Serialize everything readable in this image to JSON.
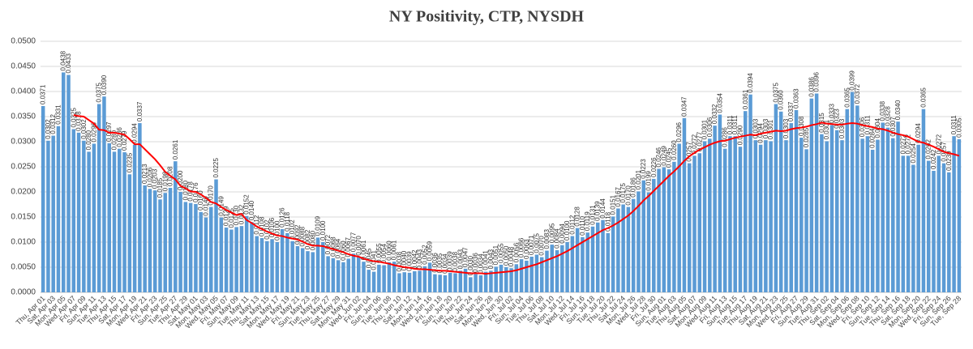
{
  "chart_data": {
    "type": "bar",
    "title": "NY Positivity, CTP, NYSDH",
    "categories": [
      "Thu, Apr 01",
      null,
      "Sat, Apr 03",
      null,
      "Mon, Apr 05",
      null,
      "Wed, Apr 07",
      null,
      "Fri, Apr 09",
      null,
      "Sun, Apr 11",
      null,
      "Tue, Apr 13",
      null,
      "Thu, Apr 15",
      null,
      "Sat, Apr 17",
      null,
      "Mon, Apr 19",
      null,
      "Wed, Apr 21",
      null,
      "Fri, Apr 23",
      null,
      "Sun, Apr 25",
      null,
      "Tue, Apr 27",
      null,
      "Thu, Apr 29",
      null,
      "Sat, May 01",
      null,
      "Mon, May 03",
      null,
      "Wed, May 05",
      null,
      "Fri, May 07",
      null,
      "Sun, May 09",
      null,
      "Tue, May 11",
      null,
      "Thu, May 13",
      null,
      "Sat, May 15",
      null,
      "Mon, May 17",
      null,
      "Wed, May 19",
      null,
      "Fri, May 21",
      null,
      "Sun, May 23",
      null,
      "Tue, May 25",
      null,
      "Thu, May 27",
      null,
      "Sat, May 29",
      null,
      "Mon, May 31",
      null,
      "Wed, Jun 02",
      null,
      "Fri, Jun 04",
      null,
      "Sun, Jun 06",
      null,
      "Tue, Jun 08",
      null,
      "Thu, Jun 10",
      null,
      "Sat, Jun 12",
      null,
      "Mon, Jun 14",
      null,
      "Wed, Jun 16",
      null,
      "Fri, Jun 18",
      null,
      "Sun, Jun 20",
      null,
      "Tue, Jun 22",
      null,
      "Thu, Jun 24",
      null,
      "Sat, Jun 26",
      null,
      "Mon, Jun 28",
      null,
      "Wed, Jun 30",
      null,
      "Fri, Jul 02",
      null,
      "Sun, Jul 04",
      null,
      "Tue, Jul 06",
      null,
      "Thu, Jul 08",
      null,
      "Sat, Jul 10",
      null,
      "Mon, Jul 12",
      null,
      "Wed, Jul 14",
      null,
      "Fri, Jul 16",
      null,
      "Sun, Jul 18",
      null,
      "Tue, Jul 20",
      null,
      "Thu, Jul 22",
      null,
      "Sat, Jul 24",
      null,
      "Mon, Jul 26",
      null,
      "Wed, Jul 28",
      null,
      "Fri, Jul 30",
      null,
      "Sun, Aug 01",
      null,
      "Tue, Aug 03",
      null,
      "Thu, Aug 05",
      null,
      "Sat, Aug 07",
      null,
      "Mon, Aug 09",
      null,
      "Wed, Aug 11",
      null,
      "Fri, Aug 13",
      null,
      "Sun, Aug 15",
      null,
      "Tue, Aug 17",
      null,
      "Thu, Aug 19",
      null,
      "Sat, Aug 21",
      null,
      "Mon, Aug 23",
      null,
      "Wed, Aug 25",
      null,
      "Fri, Aug 27",
      null,
      "Sun, Aug 29",
      null,
      "Tue, Aug 31",
      null,
      "Thu, Sep 02",
      null,
      "Sat, Sep 04",
      null,
      "Mon, Sep 06",
      null,
      "Wed, Sep 08",
      null,
      "Fri, Sep 10",
      null,
      "Sun, Sep 12",
      null,
      "Tue, Sep 14",
      null,
      "Thu, Sep 16",
      null,
      "Sat, Sep 18",
      null,
      "Mon, Sep 20",
      null,
      "Wed, Sep 22",
      null,
      "Fri, Sep 24",
      null,
      "Sun, Sep 26",
      null,
      "Tue, Sep 28"
    ],
    "series": [
      {
        "type": "bar",
        "color": "#5b9bd5",
        "values": [
          0.0371,
          0.0302,
          0.0312,
          0.0331,
          0.0438,
          0.0433,
          0.0325,
          0.0318,
          0.0302,
          0.028,
          0.0296,
          0.0375,
          0.039,
          0.0297,
          0.028,
          0.0286,
          0.0279,
          0.0235,
          0.0294,
          0.0337,
          0.0213,
          0.0206,
          0.0203,
          0.0185,
          0.0198,
          0.0208,
          0.0261,
          0.02,
          0.018,
          0.0178,
          0.0176,
          0.016,
          0.0149,
          0.017,
          0.0225,
          0.0149,
          0.0129,
          0.0125,
          0.013,
          0.0132,
          0.0152,
          0.014,
          0.0112,
          0.0108,
          0.0102,
          0.0106,
          0.01,
          0.0126,
          0.0118,
          0.0102,
          0.0092,
          0.0088,
          0.0082,
          0.008,
          0.0109,
          0.01,
          0.0072,
          0.0068,
          0.0064,
          0.006,
          0.0067,
          0.0077,
          0.007,
          0.0061,
          0.0045,
          0.0041,
          0.0055,
          0.0054,
          0.006,
          0.0061,
          0.0038,
          0.004,
          0.0039,
          0.0042,
          0.0043,
          0.0052,
          0.0059,
          0.0036,
          0.0035,
          0.0034,
          0.0039,
          0.0038,
          0.0043,
          0.0047,
          0.003,
          0.0036,
          0.0034,
          0.0041,
          0.0043,
          0.0051,
          0.0055,
          0.005,
          0.0048,
          0.0056,
          0.0066,
          0.0063,
          0.0071,
          0.0075,
          0.007,
          0.0083,
          0.0095,
          0.0084,
          0.0094,
          0.01,
          0.0112,
          0.0128,
          0.011,
          0.0119,
          0.0131,
          0.0139,
          0.0144,
          0.0118,
          0.0151,
          0.0167,
          0.0175,
          0.017,
          0.0186,
          0.0201,
          0.0223,
          0.0199,
          0.0226,
          0.0246,
          0.0249,
          0.0245,
          0.026,
          0.0296,
          0.0347,
          0.0257,
          0.0272,
          0.0277,
          0.0301,
          0.0306,
          0.0332,
          0.0354,
          0.0286,
          0.0311,
          0.0311,
          0.029,
          0.0361,
          0.0394,
          0.0303,
          0.0294,
          0.0303,
          0.0301,
          0.0375,
          0.036,
          0.0303,
          0.0337,
          0.0363,
          0.0308,
          0.0285,
          0.0386,
          0.0396,
          0.0315,
          0.0301,
          0.0333,
          0.0323,
          0.0303,
          0.0365,
          0.0399,
          0.0372,
          0.0306,
          0.0311,
          0.0284,
          0.0304,
          0.0338,
          0.0328,
          0.0307,
          0.034,
          0.0272,
          0.0272,
          0.0254,
          0.0294,
          0.0365,
          0.0262,
          0.0242,
          0.0272,
          0.0257,
          0.0239,
          0.0311,
          0.0305
        ],
        "value_labels": [
          "0.0371",
          "0.0302",
          "0.0312",
          "0.0331",
          "0.0438",
          "0.0433",
          "0.0325",
          "0.0318",
          "0.0302",
          "0.0280",
          "0.0296",
          "0.0375",
          "0.0390",
          "0.0297",
          "0.0280",
          "0.0286",
          "0.0279",
          "0.0235",
          "0.0294",
          "0.0337",
          "0.0213",
          "0.0206",
          "0.0203",
          "0.0185",
          "0.0198",
          "0.0208",
          "0.0261",
          "0.0200",
          "0.0180",
          "0.0178",
          "0.0176",
          "0.0160",
          "0.0149",
          "0.0170",
          "0.0225",
          "0.0149",
          "0.0129",
          "0.0125",
          "0.0130",
          "0.0132",
          "0.0152",
          "0.0140",
          "0.0112",
          "0.0108",
          "0.0102",
          "0.0106",
          "0.0100",
          "0.0126",
          "0.0118",
          "0.0102",
          "0.0092",
          "0.0088",
          "0.0082",
          "0.0080",
          "0.0109",
          "0.0100",
          "0.0072",
          "0.0068",
          "0.0064",
          "0.0060",
          "0.0067",
          "0.0077",
          "0.0070",
          "0.0061",
          "0.0045",
          "0.0041",
          "0.0055",
          "0.0054",
          "0.0060",
          "0.0061",
          "0.0038",
          "0.0040",
          "0.0039",
          "0.0042",
          "0.0043",
          "0.0052",
          "0.0059",
          "0.0036",
          "0.0035",
          "0.0034",
          "0.0039",
          "0.0038",
          "0.0043",
          "0.0047",
          "0.0030",
          "0.0036",
          "0.0034",
          "0.0041",
          "0.0043",
          "0.0051",
          "0.0055",
          "0.0050",
          "0.0048",
          "0.0056",
          "0.0066",
          "0.0063",
          "0.0071",
          "0.0075",
          "0.0070",
          "0.0083",
          "0.0095",
          "0.0084",
          "0.0094",
          "0.0100",
          "0.0112",
          "0.0128",
          "0.0110",
          "0.0119",
          "0.0131",
          "0.0139",
          "0.0144",
          "0.0118",
          "0.0151",
          "0.0167",
          "0.0175",
          "0.0170",
          "0.0186",
          "0.0201",
          "0.0223",
          "0.0199",
          "0.0226",
          "0.0246",
          "0.0249",
          "0.0245",
          "0.0260",
          "0.0296",
          "0.0347",
          "0.0257",
          "0.0272",
          "0.0277",
          "0.0301",
          "0.0306",
          "0.0332",
          "0.0354",
          "0.0286",
          "0.0311",
          "0.0311",
          "0.0290",
          "0.0361",
          "0.0394",
          "0.0303",
          "0.0294",
          "0.0303",
          "0.0301",
          "0.0375",
          "0.0360",
          "0.0303",
          "0.0337",
          "0.0363",
          "0.0308",
          "0.0285",
          "0.0386",
          "0.0396",
          "0.0315",
          "0.0301",
          "0.0333",
          "0.0323",
          "0.0303",
          "0.0365",
          "0.0399",
          "0.0372",
          "0.0306",
          "0.0311",
          "0.0284",
          "0.0304",
          "0.0338",
          "0.0328",
          "0.0307",
          "0.0340",
          "0.0272",
          "0.0272",
          "0.0254",
          "0.0294",
          "0.0365",
          "0.0262",
          "0.0242",
          "0.0272",
          "0.0257",
          "0.0239",
          "0.0311",
          "0.0305"
        ]
      },
      {
        "type": "line",
        "color": "#ff0000",
        "values": [
          null,
          null,
          null,
          null,
          null,
          null,
          0.0353,
          0.0351,
          0.035,
          0.0343,
          0.0336,
          0.0324,
          0.0323,
          0.0318,
          0.0318,
          0.0316,
          0.0314,
          0.0305,
          0.0295,
          0.0295,
          0.0285,
          0.0275,
          0.0265,
          0.0253,
          0.024,
          0.0232,
          0.0225,
          0.0212,
          0.0207,
          0.0201,
          0.02,
          0.0195,
          0.0188,
          0.018,
          0.0177,
          0.017,
          0.0164,
          0.0159,
          0.0154,
          0.0156,
          0.0144,
          0.0138,
          0.0131,
          0.0126,
          0.0121,
          0.0117,
          0.0113,
          0.0112,
          0.0109,
          0.0107,
          0.0105,
          0.0101,
          0.0096,
          0.0093,
          0.0093,
          0.0092,
          0.0089,
          0.0086,
          0.0083,
          0.008,
          0.0076,
          0.0073,
          0.0071,
          0.0067,
          0.0064,
          0.0062,
          0.0061,
          0.0059,
          0.0057,
          0.0054,
          0.0052,
          0.005,
          0.0049,
          0.0047,
          0.0046,
          0.0046,
          0.0045,
          0.0044,
          0.0043,
          0.0043,
          0.0042,
          0.0041,
          0.004,
          0.0039,
          0.0038,
          0.0038,
          0.0038,
          0.0037,
          0.0038,
          0.0039,
          0.004,
          0.0041,
          0.0042,
          0.0044,
          0.0047,
          0.005,
          0.0053,
          0.0056,
          0.006,
          0.0064,
          0.0068,
          0.0072,
          0.0077,
          0.0082,
          0.0088,
          0.0094,
          0.01,
          0.0106,
          0.0112,
          0.0118,
          0.0124,
          0.0128,
          0.0133,
          0.0139,
          0.0146,
          0.0153,
          0.0162,
          0.0172,
          0.0183,
          0.0192,
          0.0202,
          0.0212,
          0.0222,
          0.0232,
          0.0241,
          0.0251,
          0.0262,
          0.0271,
          0.0278,
          0.0284,
          0.0289,
          0.0294,
          0.0298,
          0.0301,
          0.0302,
          0.0305,
          0.0308,
          0.031,
          0.0312,
          0.0314,
          0.0313,
          0.0316,
          0.0318,
          0.032,
          0.0322,
          0.0321,
          0.0322,
          0.0325,
          0.0327,
          0.0328,
          0.033,
          0.0333,
          0.0335,
          0.0338,
          0.0336,
          0.0335,
          0.0334,
          0.0334,
          0.0336,
          0.0337,
          0.0336,
          0.0333,
          0.0331,
          0.0329,
          0.0326,
          0.0325,
          0.0322,
          0.0318,
          0.0315,
          0.0313,
          0.031,
          0.0305,
          0.03,
          0.0298,
          0.0294,
          0.029,
          0.0285,
          0.028,
          0.0277,
          0.0275,
          0.0272
        ]
      }
    ],
    "ylim": [
      0,
      0.05
    ],
    "yticks": [
      {
        "value": 0,
        "label": "0.0000"
      },
      {
        "value": 0.005,
        "label": "0.0050"
      },
      {
        "value": 0.01,
        "label": "0.0100"
      },
      {
        "value": 0.015,
        "label": "0.0150"
      },
      {
        "value": 0.02,
        "label": "0.0200"
      },
      {
        "value": 0.025,
        "label": "0.0250"
      },
      {
        "value": 0.03,
        "label": "0.0300"
      },
      {
        "value": 0.035,
        "label": "0.0350"
      },
      {
        "value": 0.04,
        "label": "0.0400"
      },
      {
        "value": 0.045,
        "label": "0.0450"
      },
      {
        "value": 0.05,
        "label": "0.0500"
      }
    ],
    "grid": true
  }
}
